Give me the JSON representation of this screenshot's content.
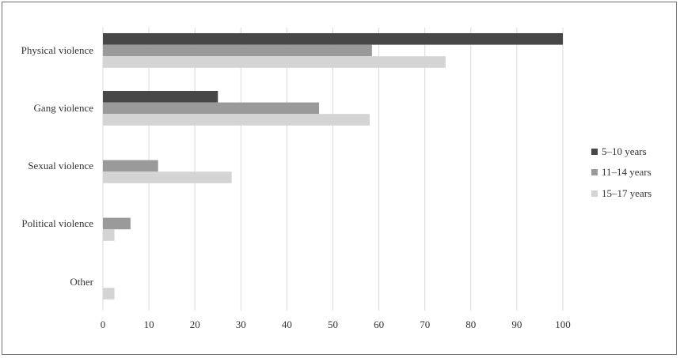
{
  "chart_data": {
    "type": "bar",
    "orientation": "horizontal",
    "title": "",
    "xlabel": "",
    "ylabel": "",
    "categories": [
      "Physical violence",
      "Gang violence",
      "Sexual violence",
      "Political violence",
      "Other"
    ],
    "series": [
      {
        "name": "5–10 years",
        "color": "#474747",
        "values": [
          100,
          25,
          0,
          0,
          0
        ]
      },
      {
        "name": "11–14 years",
        "color": "#9a9a9a",
        "values": [
          58.5,
          47,
          12,
          6,
          0
        ]
      },
      {
        "name": "15–17 years",
        "color": "#d4d4d4",
        "values": [
          74.5,
          58,
          28,
          2.5,
          2.5
        ]
      }
    ],
    "xlim": [
      0,
      100
    ],
    "xticks": [
      "0",
      "10",
      "20",
      "30",
      "40",
      "50",
      "60",
      "70",
      "80",
      "90",
      "100"
    ],
    "grid": "vertical",
    "legend": "right"
  }
}
